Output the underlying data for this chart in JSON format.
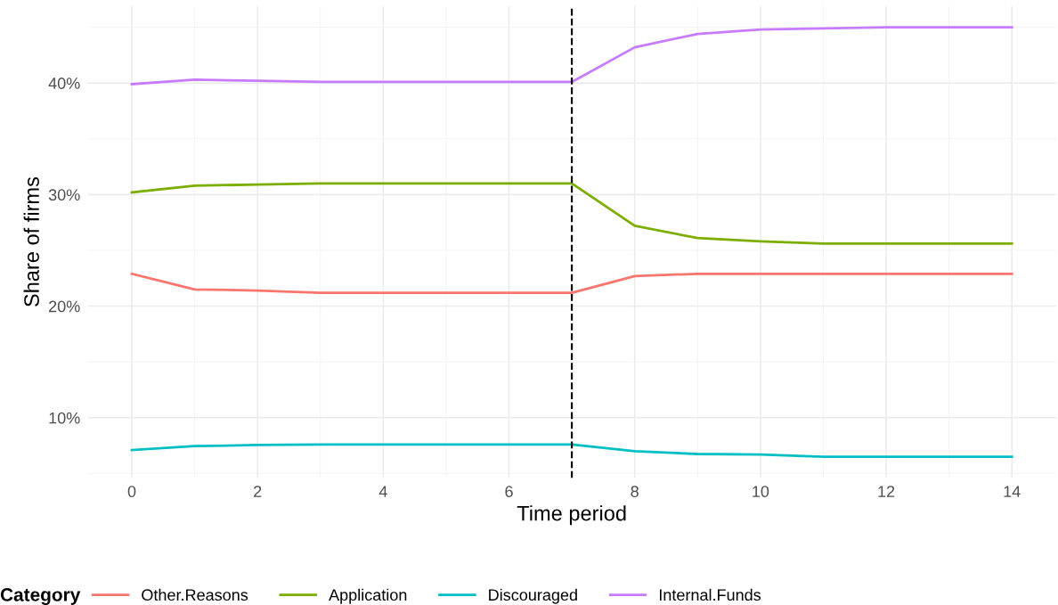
{
  "chart_data": {
    "type": "line",
    "xlabel": "Time period",
    "ylabel": "Share of firms",
    "legend_title": "Category",
    "x": [
      0,
      1,
      2,
      3,
      4,
      5,
      6,
      7,
      8,
      9,
      10,
      11,
      12,
      13,
      14
    ],
    "series": [
      {
        "name": "Other.Reasons",
        "color": "#f8766d",
        "values": [
          22.9,
          21.5,
          21.4,
          21.2,
          21.2,
          21.2,
          21.2,
          21.2,
          22.7,
          22.9,
          22.9,
          22.9,
          22.9,
          22.9,
          22.9
        ]
      },
      {
        "name": "Application",
        "color": "#7cae00",
        "values": [
          30.2,
          30.8,
          30.9,
          31.0,
          31.0,
          31.0,
          31.0,
          31.0,
          27.2,
          26.1,
          25.8,
          25.6,
          25.6,
          25.6,
          25.6
        ]
      },
      {
        "name": "Discouraged",
        "color": "#00bfc4",
        "values": [
          7.1,
          7.45,
          7.55,
          7.6,
          7.6,
          7.6,
          7.6,
          7.6,
          7.0,
          6.75,
          6.7,
          6.5,
          6.5,
          6.5,
          6.5
        ]
      },
      {
        "name": "Internal.Funds",
        "color": "#c77cff",
        "values": [
          39.9,
          40.3,
          40.2,
          40.1,
          40.1,
          40.1,
          40.1,
          40.1,
          43.2,
          44.4,
          44.8,
          44.9,
          45.0,
          45.0,
          45.0
        ]
      }
    ],
    "xlim": [
      -0.7,
      14.7
    ],
    "ylim": [
      4.6,
      46.9
    ],
    "xticks": [
      0,
      2,
      4,
      6,
      8,
      10,
      12,
      14
    ],
    "yticks": [
      {
        "value": 10,
        "label": "10%"
      },
      {
        "value": 20,
        "label": "20%"
      },
      {
        "value": 30,
        "label": "30%"
      },
      {
        "value": 40,
        "label": "40%"
      }
    ],
    "ref_lines": [
      {
        "axis": "x",
        "value": 7,
        "color": "#000000",
        "line_style": "dashed"
      }
    ],
    "grid": true,
    "legend": "bottom",
    "marker": "none",
    "line_style": "solid"
  }
}
